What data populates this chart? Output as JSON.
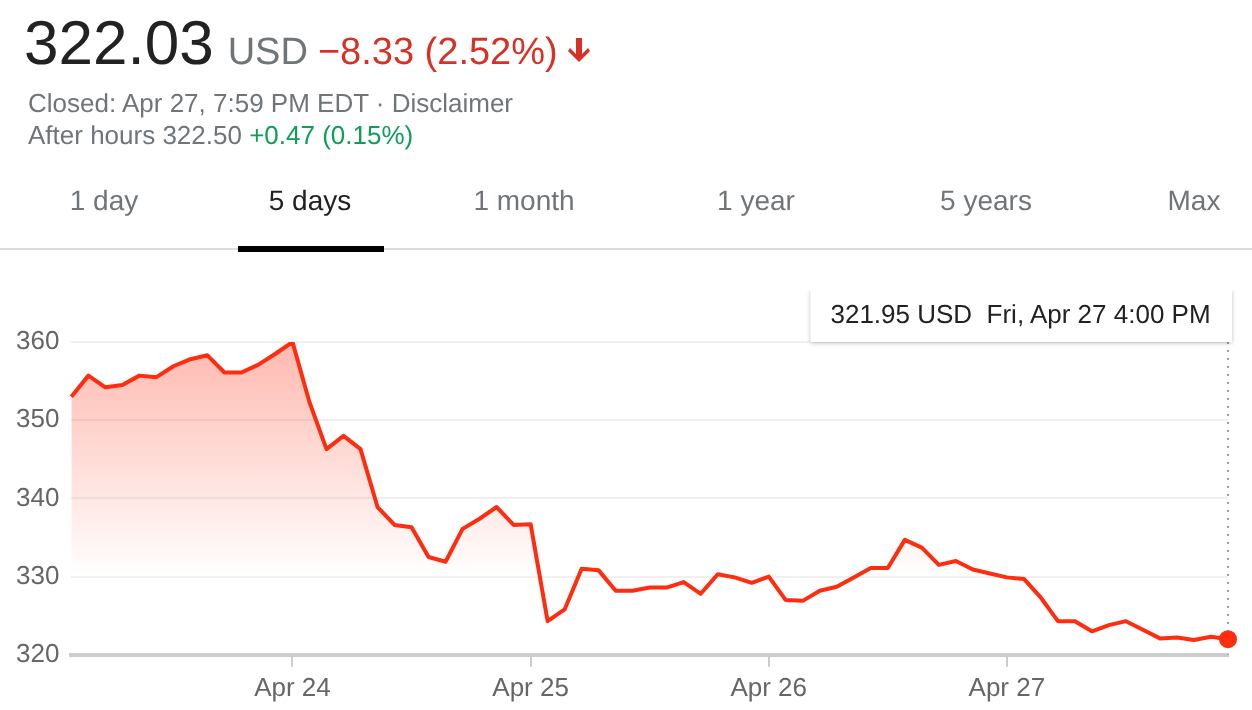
{
  "chart_data": {
    "type": "area",
    "title": "322.03",
    "annotations": [
      "USD",
      "−8.33 (2.52%)",
      "Closed: Apr 27, 7:59 PM EDT · Disclaimer",
      "After hours 322.50",
      "+0.47 (0.15%)",
      "1 day",
      "5 days",
      "1 month",
      "1 year",
      "5 years",
      "Max",
      "321.95 USD  Fri, Apr 27 4:00 PM"
    ],
    "categories": [
      null,
      null,
      null,
      null,
      null,
      null,
      null,
      null,
      null,
      null,
      null,
      null,
      null,
      "Apr 24",
      null,
      null,
      null,
      null,
      null,
      null,
      null,
      null,
      null,
      null,
      null,
      null,
      null,
      "Apr 25",
      null,
      null,
      null,
      null,
      null,
      null,
      null,
      null,
      null,
      null,
      null,
      null,
      null,
      "Apr 26",
      null,
      null,
      null,
      null,
      null,
      null,
      null,
      null,
      null,
      null,
      null,
      null,
      null,
      "Apr 27",
      null,
      null,
      null,
      null,
      null,
      null,
      null,
      null,
      null,
      null,
      null,
      null,
      null
    ],
    "series": [
      {
        "color": "#ff2d0f",
        "values": [
          353.0,
          355.7,
          354.2,
          354.5,
          355.7,
          355.5,
          356.9,
          357.8,
          358.3,
          356.1,
          356.1,
          357.1,
          358.5,
          360.0,
          352.3,
          346.3,
          348.0,
          346.3,
          338.9,
          336.6,
          336.3,
          332.5,
          331.9,
          336.1,
          337.4,
          338.9,
          336.6,
          336.7,
          324.3,
          325.8,
          331.0,
          330.8,
          328.2,
          328.2,
          328.6,
          328.6,
          329.3,
          327.8,
          330.3,
          329.9,
          329.2,
          330.0,
          327.0,
          326.9,
          328.2,
          328.7,
          329.9,
          331.1,
          331.1,
          334.7,
          333.7,
          331.5,
          332.0,
          330.9,
          330.4,
          329.9,
          329.7,
          327.3,
          324.3,
          324.3,
          323.0,
          323.8,
          324.3,
          323.2,
          322.1,
          322.2,
          321.9,
          322.3,
          322.0
        ]
      }
    ],
    "ylim": [
      320,
      360
    ],
    "yticks": [
      320,
      330,
      340,
      350,
      360
    ],
    "grid": "y",
    "legend": false,
    "marker": "none",
    "line_style": "solid"
  }
}
